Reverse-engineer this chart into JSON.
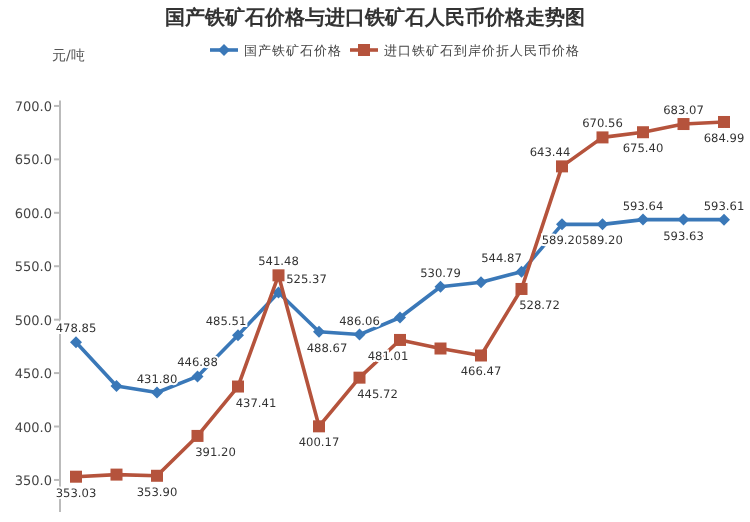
{
  "chart_data": {
    "type": "line",
    "title": "国产铁矿石价格与进口铁矿石人民币价格走势图",
    "ylabel": "元/吨",
    "categories": [
      null,
      null,
      null,
      null,
      null,
      null,
      null,
      null,
      null,
      null,
      null,
      null,
      null,
      null,
      null,
      null,
      null
    ],
    "ylim": [
      320,
      705
    ],
    "yticks": [
      {
        "value": 350,
        "label": "350.0"
      },
      {
        "value": 400,
        "label": "400.0"
      },
      {
        "value": 450,
        "label": "450.0"
      },
      {
        "value": 500,
        "label": "500.0"
      },
      {
        "value": 550,
        "label": "550.0"
      },
      {
        "value": 600,
        "label": "600.0"
      },
      {
        "value": 650,
        "label": "650.0"
      },
      {
        "value": 700,
        "label": "700.0"
      }
    ],
    "grid": false,
    "legend": "top",
    "series": [
      {
        "name": "国产铁矿石价格",
        "color": "#3a78b8",
        "marker": "diamond",
        "values": [
          478.85,
          438,
          431.8,
          446.88,
          485.51,
          525.37,
          488.67,
          486.06,
          502,
          530.79,
          535,
          544.87,
          589.2,
          589.2,
          593.64,
          593.63,
          593.61
        ],
        "value_labels": [
          "478.85",
          null,
          "431.80",
          "446.88",
          "485.51",
          "525.37",
          "488.67",
          "486.06",
          null,
          "530.79",
          null,
          "544.87",
          "589.20",
          "589.20",
          "593.64",
          "593.63",
          "593.61"
        ]
      },
      {
        "name": "进口铁矿石到岸价折人民币价格",
        "color": "#b5533c",
        "marker": "square",
        "values": [
          353.03,
          355,
          353.9,
          391.2,
          437.41,
          541.48,
          400.17,
          445.72,
          481.01,
          473,
          466.47,
          528.72,
          643.44,
          670.56,
          675.4,
          683.07,
          684.99
        ],
        "value_labels": [
          "353.03",
          null,
          "353.90",
          "391.20",
          "437.41",
          "541.48",
          "400.17",
          "445.72",
          "481.01",
          null,
          "466.47",
          "528.72",
          "643.44",
          "670.56",
          "675.40",
          "683.07",
          "684.99"
        ]
      }
    ]
  }
}
